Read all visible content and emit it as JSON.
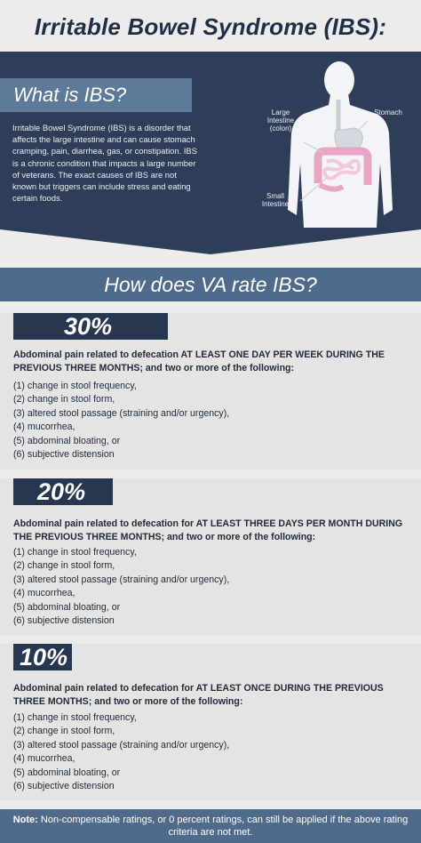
{
  "title": "Irritable Bowel Syndrome (IBS):",
  "what_is": {
    "heading": "What is IBS?",
    "text": "Irritable Bowel Syndrome (IBS) is a disorder that affects the large intestine and can cause stomach cramping, pain, diarrhea, gas, or constipation. IBS is a chronic condition that impacts a large number of veterans.  The exact causes of IBS are not known but triggers can include stress and eating certain foods."
  },
  "diagram": {
    "large_intestine": [
      "Large",
      "Intestine",
      "(colon)"
    ],
    "stomach": "Stomach",
    "small_intestine": [
      "Small",
      "Intestine"
    ]
  },
  "rating_heading": "How does VA rate IBS?",
  "ratings": [
    {
      "percent": "30%",
      "lead": "Abdominal pain related to defecation AT LEAST ONE DAY PER WEEK DURING THE PREVIOUS THREE MONTHS; and two or more of the following:",
      "items": [
        "(1) change in stool frequency,",
        "(2) change in stool form,",
        "(3) altered stool passage (straining and/or urgency),",
        "(4) mucorrhea,",
        "(5) abdominal bloating, or",
        "(6) subjective distension"
      ]
    },
    {
      "percent": "20%",
      "lead": "Abdominal pain related to defecation for AT LEAST THREE DAYS PER MONTH DURING THE PREVIOUS THREE MONTHS; and two or more of the following:",
      "items": [
        "(1) change in stool frequency,",
        "(2) change in stool form,",
        "(3) altered stool passage (straining and/or urgency),",
        "(4) mucorrhea,",
        "(5) abdominal bloating, or",
        "(6) subjective distension"
      ]
    },
    {
      "percent": "10%",
      "lead": "Abdominal pain related to defecation for AT LEAST ONCE DURING THE PREVIOUS THREE MONTHS; and two or more of the following:",
      "items": [
        "(1) change in stool frequency,",
        "(2) change in stool form,",
        "(3) altered stool passage (straining and/or urgency),",
        "(4) mucorrhea,",
        "(5) abdominal bloating, or",
        "(6) subjective distension"
      ]
    }
  ],
  "note": {
    "label": "Note:",
    "text": "Non-compensable ratings, or 0 percent ratings, can still be applied if the above rating criteria are not met."
  },
  "colors": {
    "navy": "#2e3e58",
    "steel": "#4f6a8a",
    "badge": "#27374f",
    "colon": "#e9a6c4",
    "stomach": "#dfe3e8"
  }
}
